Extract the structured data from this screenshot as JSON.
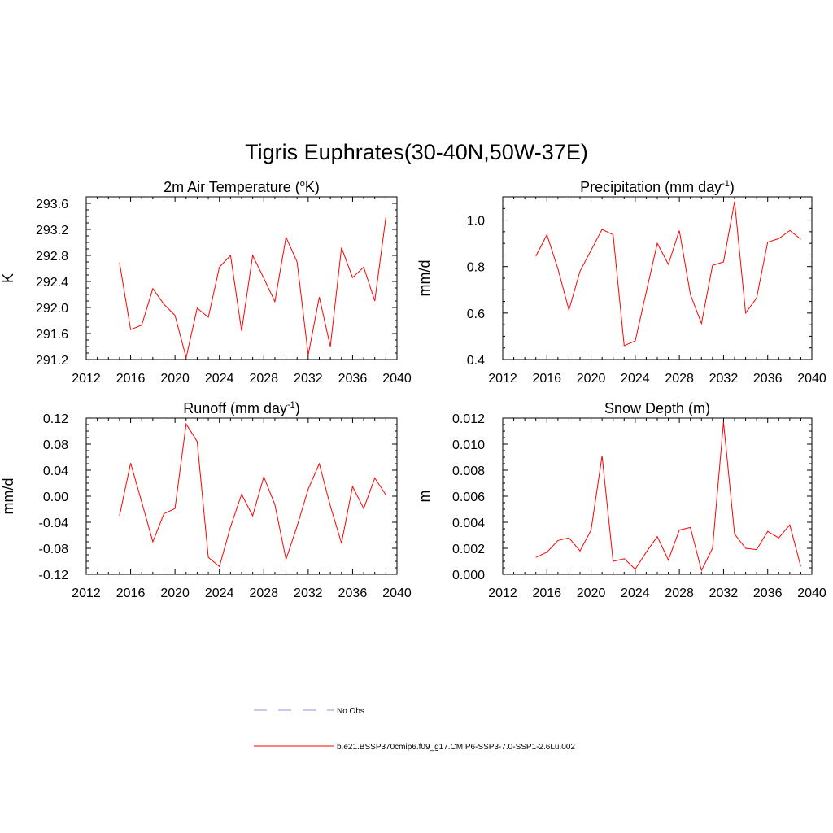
{
  "figure": {
    "title": "Tigris Euphrates(30-40N,50W-37E)"
  },
  "legend": {
    "entries": [
      {
        "label": "No Obs",
        "color": "#a9a9e0",
        "dashed": true
      },
      {
        "label": "b.e21.BSSP370cmip6.f09_g17.CMIP6-SSP3-7.0-SSP1-2.6Lu.002",
        "color": "#ff0000",
        "dashed": false
      }
    ]
  },
  "chart_data": [
    {
      "type": "line",
      "title_main": "2m Air Temperature (",
      "title_sup": "o",
      "title_end": "K)",
      "ylabel": "K",
      "xlim": [
        2012,
        2040
      ],
      "ylim": [
        291.2,
        293.7
      ],
      "xticks": [
        2012,
        2016,
        2020,
        2024,
        2028,
        2032,
        2036,
        2040
      ],
      "yticks": [
        291.2,
        291.6,
        292.0,
        292.4,
        292.8,
        293.2,
        293.6
      ],
      "ytick_labels": [
        "291.2",
        "291.6",
        "292.0",
        "292.4",
        "292.8",
        "293.2",
        "293.6"
      ],
      "color": "#ff0000",
      "x": [
        2015,
        2016,
        2017,
        2018,
        2019,
        2020,
        2021,
        2022,
        2023,
        2024,
        2025,
        2026,
        2027,
        2028,
        2029,
        2030,
        2031,
        2032,
        2033,
        2034,
        2035,
        2036,
        2037,
        2038,
        2039
      ],
      "values": [
        292.69,
        291.66,
        291.73,
        292.29,
        292.05,
        291.88,
        291.23,
        291.99,
        291.85,
        292.62,
        292.8,
        291.64,
        292.8,
        292.45,
        292.09,
        293.08,
        292.7,
        291.27,
        292.16,
        291.4,
        292.92,
        292.46,
        292.62,
        292.1,
        293.39
      ]
    },
    {
      "type": "line",
      "title_main": "Precipitation (mm day",
      "title_sup": "-1",
      "title_end": ")",
      "ylabel": "mm/d",
      "xlim": [
        2012,
        2040
      ],
      "ylim": [
        0.4,
        1.1
      ],
      "xticks": [
        2012,
        2016,
        2020,
        2024,
        2028,
        2032,
        2036,
        2040
      ],
      "yticks": [
        0.4,
        0.6,
        0.8,
        1.0
      ],
      "ytick_labels": [
        "0.4",
        "0.6",
        "0.8",
        "1.0"
      ],
      "color": "#ff0000",
      "x": [
        2015,
        2016,
        2017,
        2018,
        2019,
        2020,
        2021,
        2022,
        2023,
        2024,
        2025,
        2026,
        2027,
        2028,
        2029,
        2030,
        2031,
        2032,
        2033,
        2034,
        2035,
        2036,
        2037,
        2038,
        2039
      ],
      "values": [
        0.845,
        0.937,
        0.79,
        0.613,
        0.78,
        0.87,
        0.96,
        0.937,
        0.46,
        0.48,
        0.69,
        0.9,
        0.81,
        0.955,
        0.68,
        0.555,
        0.805,
        0.82,
        1.08,
        0.6,
        0.665,
        0.905,
        0.92,
        0.955,
        0.918
      ]
    },
    {
      "type": "line",
      "title_main": "Runoff (mm day",
      "title_sup": "-1",
      "title_end": ")",
      "ylabel": "mm/d",
      "xlim": [
        2012,
        2040
      ],
      "ylim": [
        -0.12,
        0.12
      ],
      "xticks": [
        2012,
        2016,
        2020,
        2024,
        2028,
        2032,
        2036,
        2040
      ],
      "yticks": [
        -0.12,
        -0.08,
        -0.04,
        0.0,
        0.04,
        0.08,
        0.12
      ],
      "ytick_labels": [
        "-0.12",
        "-0.08",
        "-0.04",
        "0.00",
        "0.04",
        "0.08",
        "0.12"
      ],
      "color": "#ff0000",
      "x": [
        2015,
        2016,
        2017,
        2018,
        2019,
        2020,
        2021,
        2022,
        2023,
        2024,
        2025,
        2026,
        2027,
        2028,
        2029,
        2030,
        2031,
        2032,
        2033,
        2034,
        2035,
        2036,
        2037,
        2038,
        2039
      ],
      "values": [
        -0.03,
        0.051,
        -0.009,
        -0.07,
        -0.027,
        -0.019,
        0.111,
        0.084,
        -0.094,
        -0.108,
        -0.047,
        0.003,
        -0.03,
        0.03,
        -0.013,
        -0.097,
        -0.046,
        0.011,
        0.05,
        -0.015,
        -0.072,
        0.015,
        -0.019,
        0.028,
        0.002
      ]
    },
    {
      "type": "line",
      "title_main": "Snow Depth (m)",
      "title_sup": "",
      "title_end": "",
      "ylabel": "m",
      "xlim": [
        2012,
        2040
      ],
      "ylim": [
        0.0,
        0.012
      ],
      "xticks": [
        2012,
        2016,
        2020,
        2024,
        2028,
        2032,
        2036,
        2040
      ],
      "yticks": [
        0.0,
        0.002,
        0.004,
        0.006,
        0.008,
        0.01,
        0.012
      ],
      "ytick_labels": [
        "0.000",
        "0.002",
        "0.004",
        "0.006",
        "0.008",
        "0.010",
        "0.012"
      ],
      "color": "#ff0000",
      "x": [
        2015,
        2016,
        2017,
        2018,
        2019,
        2020,
        2021,
        2022,
        2023,
        2024,
        2025,
        2026,
        2027,
        2028,
        2029,
        2030,
        2031,
        2032,
        2033,
        2034,
        2035,
        2036,
        2037,
        2038,
        2039
      ],
      "values": [
        0.0013,
        0.0017,
        0.0026,
        0.0028,
        0.0018,
        0.0034,
        0.0091,
        0.001,
        0.0012,
        0.0004,
        0.0017,
        0.0029,
        0.0011,
        0.0034,
        0.0036,
        0.0003,
        0.002,
        0.0117,
        0.0031,
        0.002,
        0.0019,
        0.0033,
        0.0028,
        0.0038,
        0.0006
      ]
    }
  ]
}
